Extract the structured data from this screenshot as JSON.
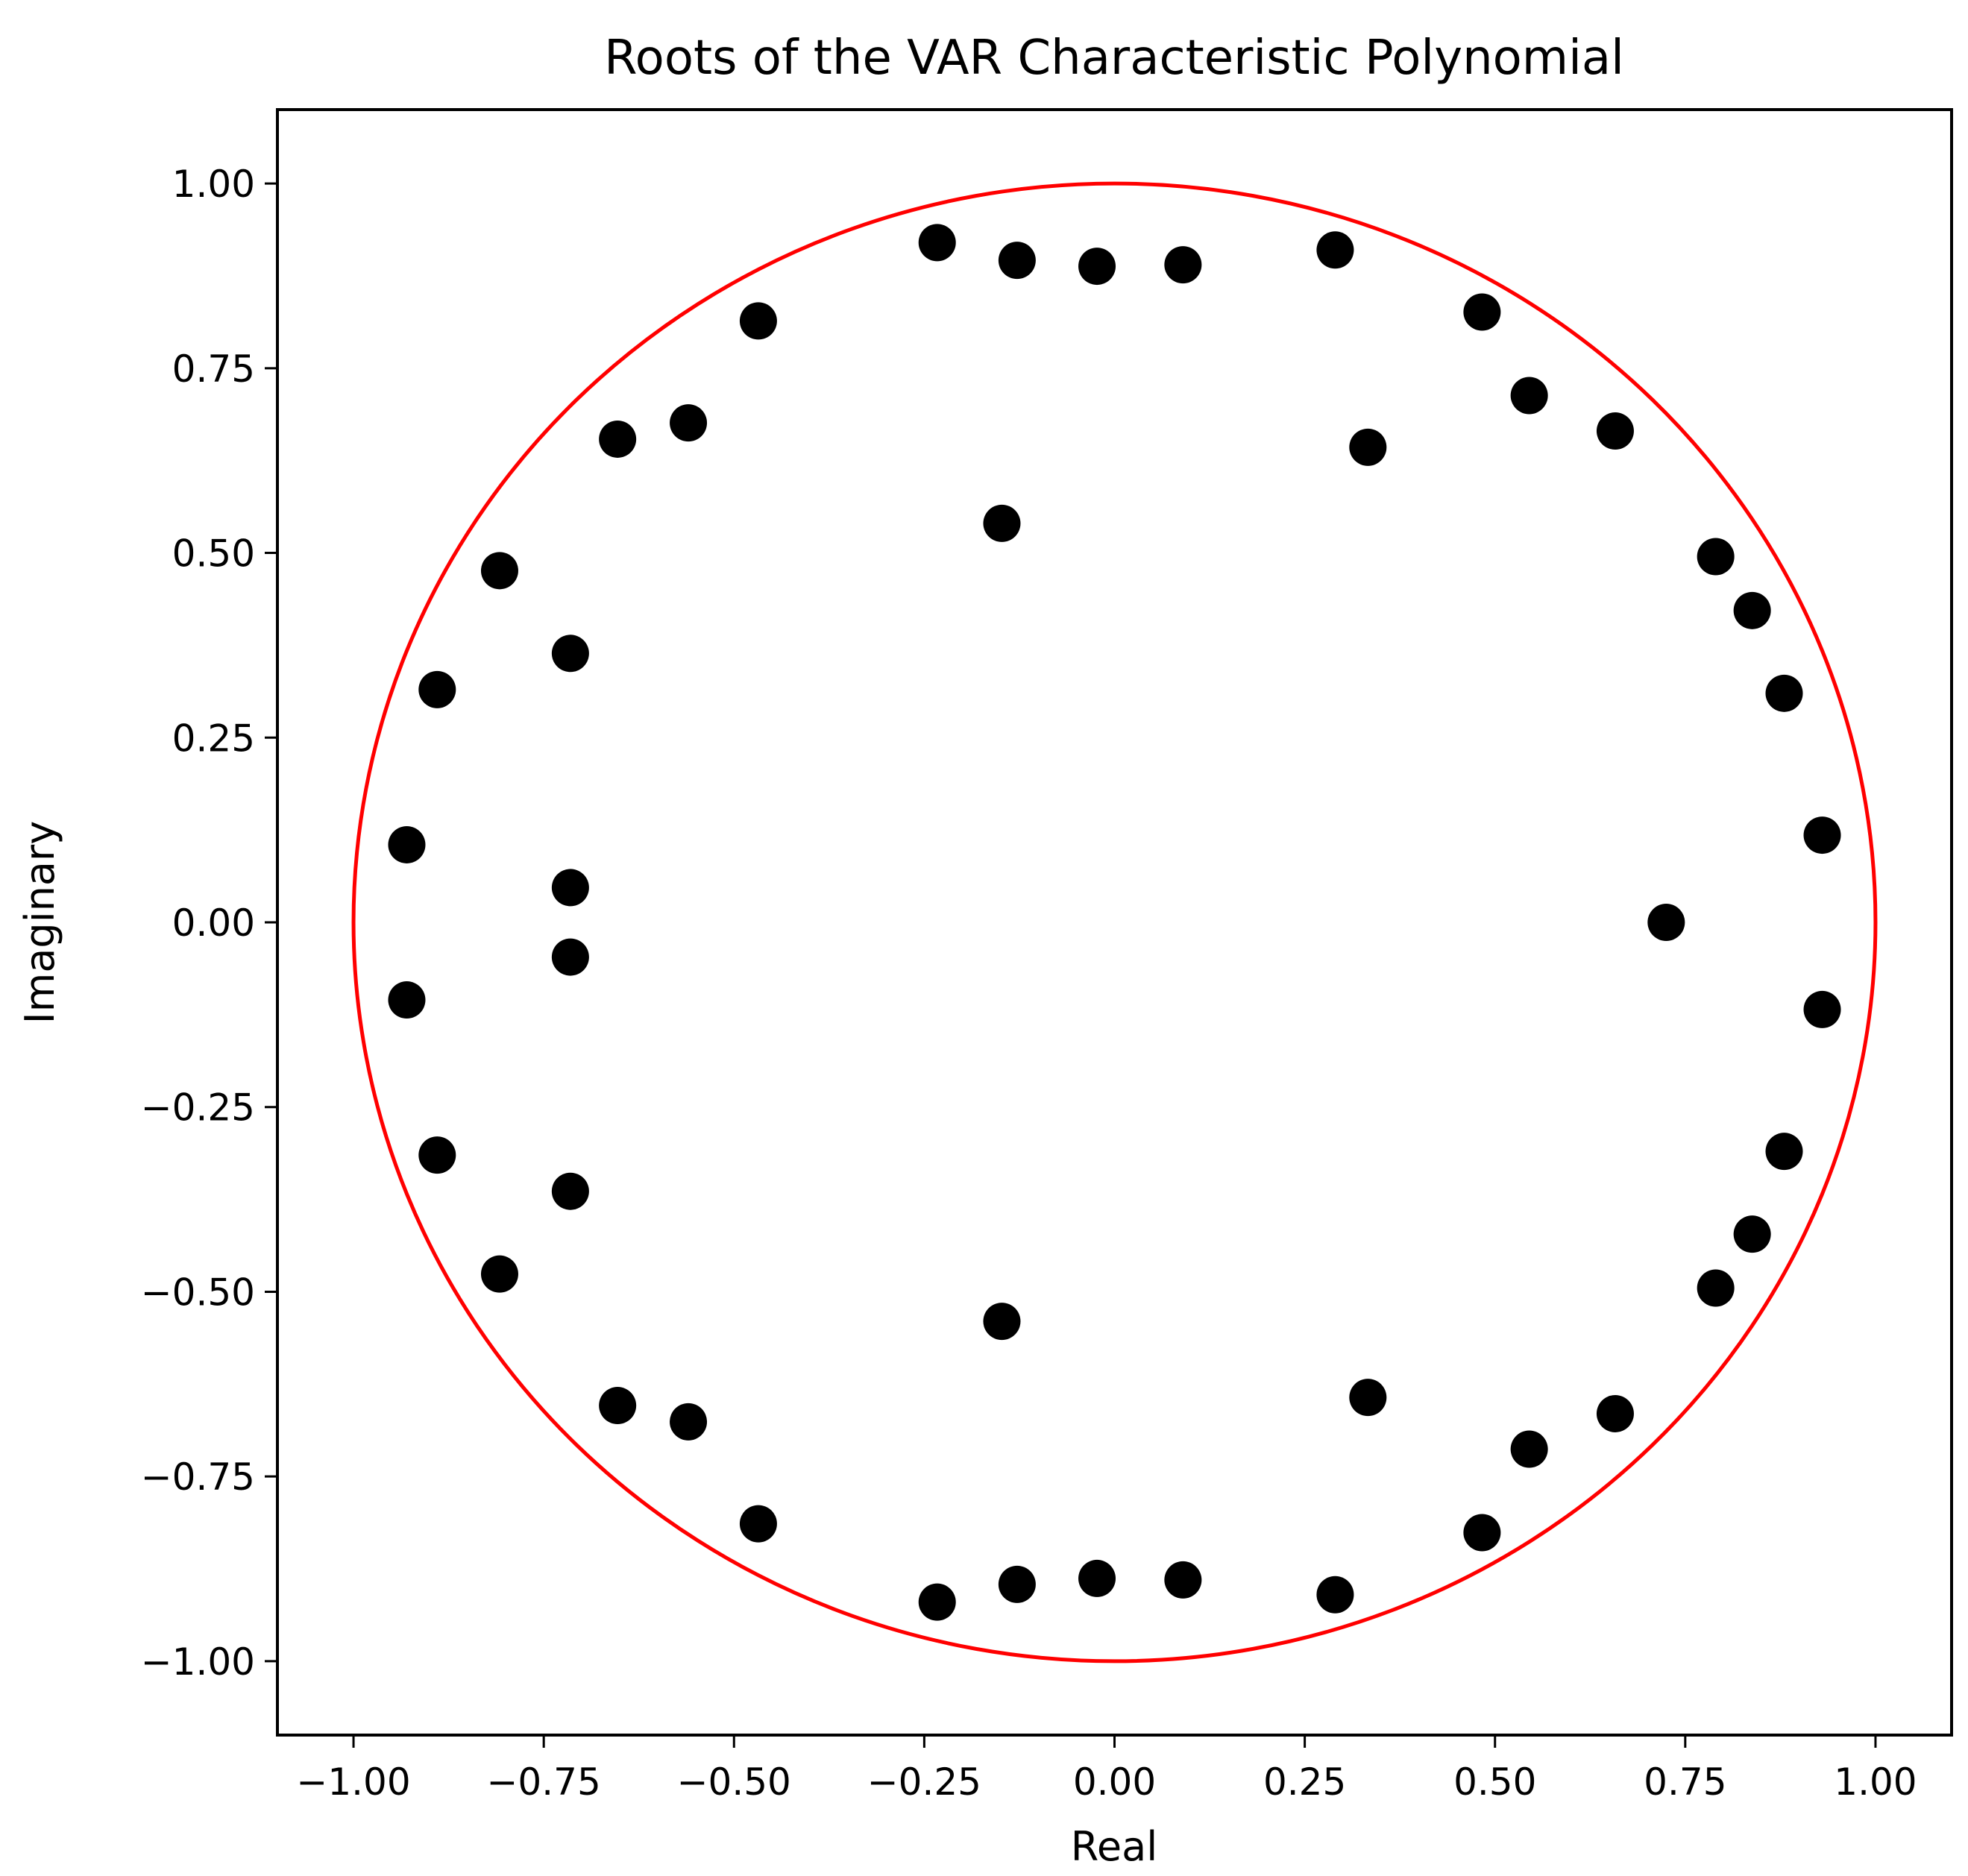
{
  "chart_data": {
    "type": "scatter",
    "title": "Roots of the VAR Characteristic Polynomial",
    "xlabel": "Real",
    "ylabel": "Imaginary",
    "xlim": [
      -1.1,
      1.1
    ],
    "ylim": [
      -1.1,
      1.1
    ],
    "grid": false,
    "xticks": [
      -1.0,
      -0.75,
      -0.5,
      -0.25,
      0.0,
      0.25,
      0.5,
      0.75,
      1.0
    ],
    "xtick_labels": [
      "−1.00",
      "−0.75",
      "−0.50",
      "−0.25",
      "0.00",
      "0.25",
      "0.50",
      "0.75",
      "1.00"
    ],
    "yticks": [
      1.0,
      0.75,
      0.5,
      0.25,
      0.0,
      -0.25,
      -0.5,
      -0.75,
      -1.0
    ],
    "ytick_labels": [
      "1.00",
      "0.75",
      "0.50",
      "0.25",
      "0.00",
      "−0.25",
      "−0.50",
      "−0.75",
      "−1.00"
    ],
    "unit_circle": {
      "radius": 1.0,
      "color": "#ff0000"
    },
    "point_color": "#000000",
    "points": [
      {
        "x": -0.233,
        "y": 0.92
      },
      {
        "x": -0.233,
        "y": -0.92
      },
      {
        "x": -0.128,
        "y": 0.896
      },
      {
        "x": -0.128,
        "y": -0.896
      },
      {
        "x": -0.023,
        "y": 0.888
      },
      {
        "x": -0.023,
        "y": -0.888
      },
      {
        "x": 0.09,
        "y": 0.89
      },
      {
        "x": 0.09,
        "y": -0.89
      },
      {
        "x": 0.29,
        "y": 0.91
      },
      {
        "x": 0.29,
        "y": -0.91
      },
      {
        "x": -0.468,
        "y": 0.814
      },
      {
        "x": -0.468,
        "y": -0.814
      },
      {
        "x": 0.483,
        "y": 0.826
      },
      {
        "x": 0.483,
        "y": -0.826
      },
      {
        "x": -0.653,
        "y": 0.654
      },
      {
        "x": -0.653,
        "y": -0.654
      },
      {
        "x": -0.56,
        "y": 0.676
      },
      {
        "x": -0.56,
        "y": -0.676
      },
      {
        "x": 0.545,
        "y": 0.713
      },
      {
        "x": 0.545,
        "y": -0.713
      },
      {
        "x": 0.658,
        "y": 0.665
      },
      {
        "x": 0.658,
        "y": -0.665
      },
      {
        "x": 0.333,
        "y": 0.643
      },
      {
        "x": 0.333,
        "y": -0.643
      },
      {
        "x": -0.148,
        "y": 0.54
      },
      {
        "x": -0.148,
        "y": -0.54
      },
      {
        "x": -0.808,
        "y": 0.476
      },
      {
        "x": -0.808,
        "y": -0.476
      },
      {
        "x": 0.79,
        "y": 0.495
      },
      {
        "x": 0.79,
        "y": -0.495
      },
      {
        "x": 0.838,
        "y": 0.422
      },
      {
        "x": 0.838,
        "y": -0.422
      },
      {
        "x": -0.715,
        "y": 0.364
      },
      {
        "x": -0.715,
        "y": -0.364
      },
      {
        "x": -0.89,
        "y": 0.315
      },
      {
        "x": -0.89,
        "y": -0.315
      },
      {
        "x": 0.88,
        "y": 0.31
      },
      {
        "x": 0.88,
        "y": -0.31
      },
      {
        "x": -0.93,
        "y": 0.105
      },
      {
        "x": -0.93,
        "y": -0.105
      },
      {
        "x": 0.93,
        "y": 0.118
      },
      {
        "x": 0.93,
        "y": -0.118
      },
      {
        "x": -0.715,
        "y": 0.047
      },
      {
        "x": -0.715,
        "y": -0.047
      },
      {
        "x": 0.725,
        "y": 0.0
      }
    ]
  }
}
